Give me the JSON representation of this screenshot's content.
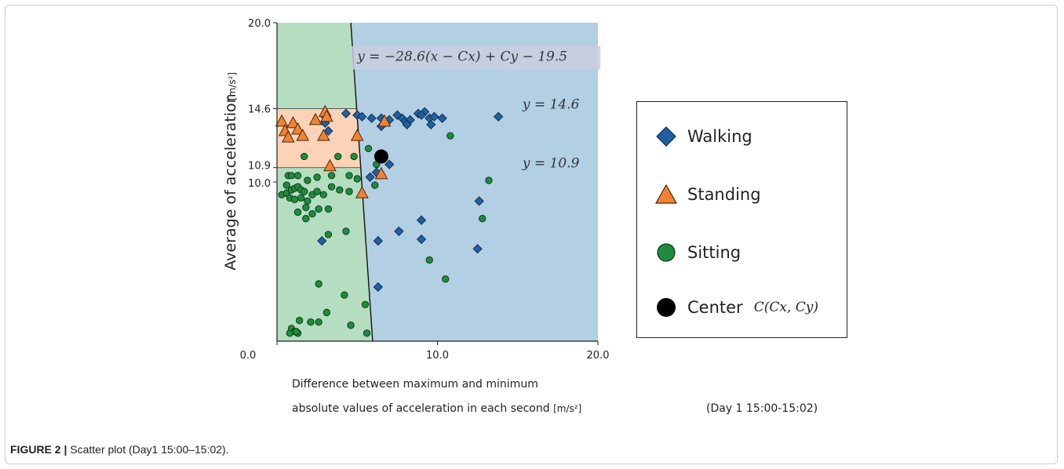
{
  "chart_data": {
    "type": "scatter",
    "xlabel_line1": "Difference between maximum and minimum",
    "xlabel_line2": "absolute values of acceleration in each second",
    "xlabel_unit": "[m/s²]",
    "ylabel": "Average of acceleration",
    "ylabel_unit": "[m/s²]",
    "note": "(Day 1  15:00-15:02)",
    "xlim": [
      0.0,
      20.0
    ],
    "ylim": [
      0.0,
      20.0
    ],
    "x_ticks": [
      "0.0",
      "10.0",
      "20.0"
    ],
    "y_ticks": [
      "20.0",
      "14.6",
      "10.9",
      "10.0"
    ],
    "y_tick_values": [
      20.0,
      14.6,
      10.9,
      10.0
    ],
    "grid": false,
    "legend_position": "right",
    "regions": [
      {
        "name": "Walking",
        "color": "#b3cfe3"
      },
      {
        "name": "Sitting",
        "color": "#b5ddbf"
      },
      {
        "name": "Standing",
        "color": "#fcd3b7"
      }
    ],
    "boundary_line": {
      "x_at_top": 4.6,
      "x_at_bottom": 5.96
    },
    "annotations": [
      {
        "text": "y = −28.6(x − Cx) + Cy − 19.5",
        "x": 5.0,
        "y": 17.6,
        "highlight": true
      },
      {
        "text": "y = 14.6",
        "x": 15.3,
        "y": 14.6,
        "highlight": false
      },
      {
        "text": "y = 10.9",
        "x": 15.3,
        "y": 10.9,
        "highlight": false
      }
    ],
    "center": {
      "name": "Center",
      "label": "C(Cx, Cy)",
      "x": 6.5,
      "y": 11.6,
      "color": "#000000"
    },
    "series": [
      {
        "name": "Walking",
        "marker": "diamond",
        "color": "#2060a0",
        "points": [
          [
            3.0,
            13.7
          ],
          [
            3.2,
            13.2
          ],
          [
            3.0,
            14.1
          ],
          [
            4.3,
            14.3
          ],
          [
            5.0,
            14.2
          ],
          [
            5.3,
            14.1
          ],
          [
            5.9,
            14.0
          ],
          [
            6.5,
            14.0
          ],
          [
            6.5,
            13.5
          ],
          [
            7.0,
            13.9
          ],
          [
            7.5,
            14.2
          ],
          [
            7.8,
            14.0
          ],
          [
            8.0,
            13.8
          ],
          [
            8.3,
            13.9
          ],
          [
            8.8,
            14.3
          ],
          [
            9.2,
            14.4
          ],
          [
            9.5,
            14.0
          ],
          [
            9.8,
            14.1
          ],
          [
            10.3,
            14.0
          ],
          [
            9.0,
            14.2
          ],
          [
            9.6,
            13.6
          ],
          [
            8.1,
            13.6
          ],
          [
            13.8,
            14.1
          ],
          [
            7.0,
            11.1
          ],
          [
            5.8,
            10.3
          ],
          [
            6.2,
            10.6
          ],
          [
            12.6,
            8.8
          ],
          [
            9.0,
            7.6
          ],
          [
            7.6,
            6.9
          ],
          [
            9.0,
            6.4
          ],
          [
            2.8,
            6.3
          ],
          [
            6.3,
            6.3
          ],
          [
            12.5,
            5.8
          ],
          [
            6.3,
            3.4
          ]
        ]
      },
      {
        "name": "Standing",
        "marker": "triangle",
        "color": "#f28232",
        "points": [
          [
            0.3,
            13.8
          ],
          [
            0.5,
            13.2
          ],
          [
            0.7,
            12.8
          ],
          [
            1.0,
            13.7
          ],
          [
            1.3,
            13.3
          ],
          [
            1.6,
            12.9
          ],
          [
            2.4,
            13.9
          ],
          [
            3.0,
            14.4
          ],
          [
            3.1,
            14.1
          ],
          [
            2.9,
            12.9
          ],
          [
            3.3,
            11.0
          ],
          [
            5.0,
            12.9
          ],
          [
            6.5,
            10.5
          ],
          [
            6.7,
            13.8
          ],
          [
            5.3,
            9.3
          ]
        ]
      },
      {
        "name": "Sitting",
        "marker": "circle",
        "color": "#1e8c3c",
        "points": [
          [
            0.3,
            9.2
          ],
          [
            0.6,
            9.3
          ],
          [
            0.6,
            9.8
          ],
          [
            0.9,
            9.5
          ],
          [
            1.1,
            9.6
          ],
          [
            1.3,
            9.7
          ],
          [
            1.5,
            9.5
          ],
          [
            1.7,
            9.4
          ],
          [
            0.7,
            10.4
          ],
          [
            0.9,
            10.4
          ],
          [
            1.3,
            10.4
          ],
          [
            1.9,
            10.1
          ],
          [
            2.5,
            10.3
          ],
          [
            3.4,
            10.4
          ],
          [
            4.5,
            10.4
          ],
          [
            5.0,
            10.2
          ],
          [
            0.8,
            9.0
          ],
          [
            1.1,
            8.9
          ],
          [
            1.5,
            9.0
          ],
          [
            1.9,
            8.8
          ],
          [
            2.2,
            9.2
          ],
          [
            2.5,
            9.4
          ],
          [
            2.9,
            9.2
          ],
          [
            3.4,
            9.7
          ],
          [
            3.9,
            9.5
          ],
          [
            4.5,
            9.4
          ],
          [
            1.3,
            8.1
          ],
          [
            1.8,
            8.4
          ],
          [
            2.2,
            8.0
          ],
          [
            2.6,
            8.3
          ],
          [
            3.2,
            8.3
          ],
          [
            1.8,
            7.7
          ],
          [
            3.2,
            6.7
          ],
          [
            4.3,
            6.9
          ],
          [
            1.7,
            11.6
          ],
          [
            3.8,
            11.6
          ],
          [
            4.8,
            11.6
          ],
          [
            5.7,
            12.1
          ],
          [
            6.2,
            11.1
          ],
          [
            6.1,
            9.8
          ],
          [
            10.8,
            12.9
          ],
          [
            13.2,
            10.1
          ],
          [
            12.8,
            7.7
          ],
          [
            9.5,
            5.1
          ],
          [
            10.5,
            3.9
          ],
          [
            2.6,
            3.6
          ],
          [
            4.2,
            2.9
          ],
          [
            5.5,
            2.3
          ],
          [
            3.1,
            1.8
          ],
          [
            2.6,
            1.2
          ],
          [
            2.1,
            1.2
          ],
          [
            1.4,
            1.3
          ],
          [
            0.9,
            0.8
          ],
          [
            1.1,
            0.6
          ],
          [
            1.3,
            0.5
          ],
          [
            0.8,
            0.5
          ],
          [
            1.2,
            0.6
          ],
          [
            4.6,
            1.0
          ],
          [
            5.6,
            0.5
          ]
        ]
      }
    ]
  },
  "caption": {
    "label": "FIGURE 2 |",
    "text": " Scatter plot (Day1 15:00–15:02)."
  },
  "legend": [
    {
      "name": "Walking"
    },
    {
      "name": "Standing"
    },
    {
      "name": "Sitting"
    },
    {
      "name": "Center",
      "math": "C(Cx, Cy)"
    }
  ]
}
